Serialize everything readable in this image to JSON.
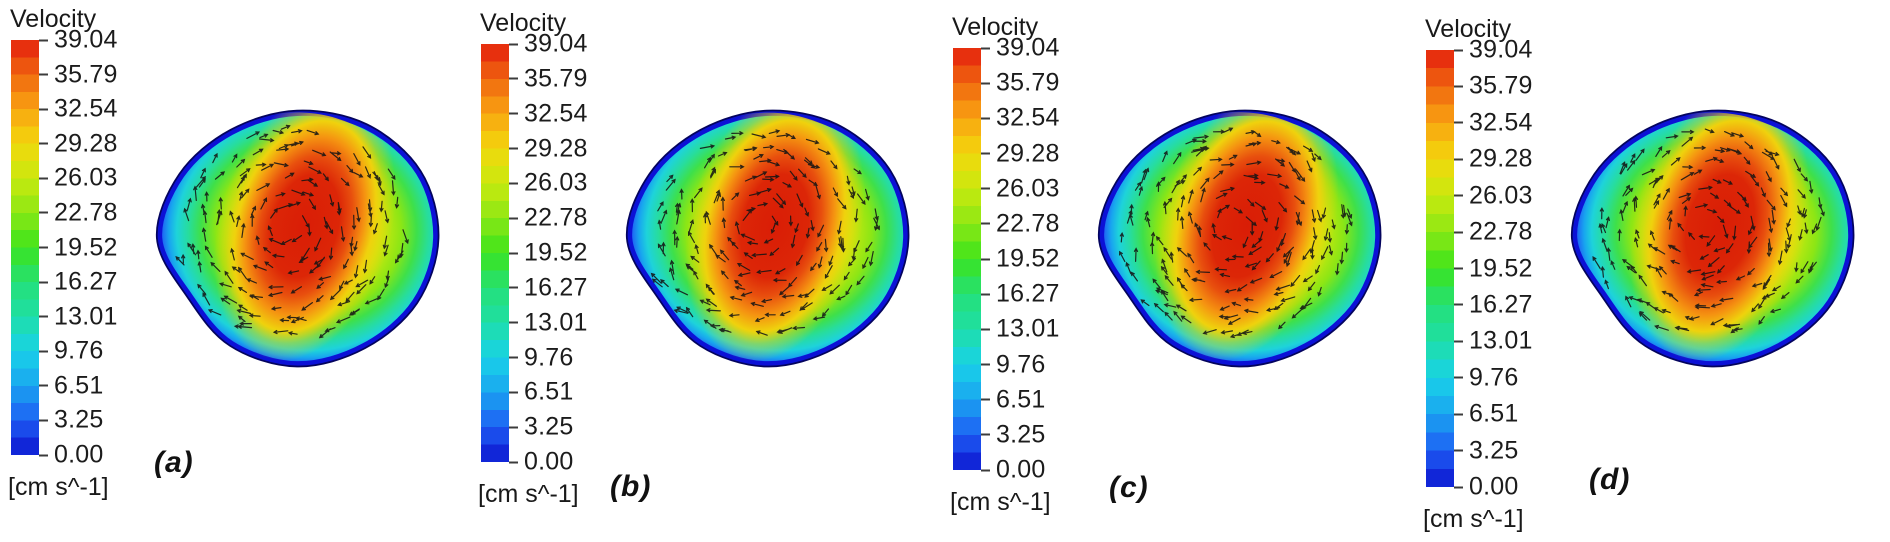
{
  "figure": {
    "background": "#ffffff",
    "legend": {
      "title": "Velocity",
      "unit": "[cm s^-1]",
      "ticks": [
        "39.04",
        "35.79",
        "32.54",
        "29.28",
        "26.03",
        "22.78",
        "19.52",
        "16.27",
        "13.01",
        "9.76",
        "6.51",
        "3.25",
        "0.00"
      ],
      "colors": [
        "#e41e0e",
        "#f0670f",
        "#f9a411",
        "#f2d80c",
        "#c9e90f",
        "#8ce814",
        "#3ce41c",
        "#24e077",
        "#1fdfa6",
        "#18d2e8",
        "#1aa4f0",
        "#1e5ef4",
        "#0d13cf"
      ]
    },
    "panels": [
      {
        "label": "(a)"
      },
      {
        "label": "(b)"
      },
      {
        "label": "(c)"
      },
      {
        "label": "(d)"
      }
    ],
    "contour": {
      "rim_outer_color": "#04045e",
      "rim_inner_color": "#0c11d6",
      "vector_color": "#141414",
      "base_stops": [
        [
          0,
          "#f0d90c"
        ],
        [
          0.3,
          "#eadf0c"
        ],
        [
          0.46,
          "#cfe80f"
        ],
        [
          0.6,
          "#8ce615"
        ],
        [
          0.7,
          "#3ee04a"
        ],
        [
          0.78,
          "#27dd9d"
        ],
        [
          0.855,
          "#1ed3da"
        ],
        [
          0.905,
          "#18a6ef"
        ],
        [
          0.95,
          "#1e66f4"
        ],
        [
          0.985,
          "#1229dd"
        ],
        [
          1,
          "#0c12c4"
        ]
      ],
      "core_stops": [
        [
          0,
          "#d91d06"
        ],
        [
          0.38,
          "#dc2607"
        ],
        [
          0.52,
          "#e84f0e"
        ],
        [
          0.66,
          "#f59311"
        ],
        [
          0.78,
          "#efd20d"
        ],
        [
          0.87,
          "rgba(239,210,13,0.45)"
        ],
        [
          1,
          "rgba(239,210,13,0)"
        ]
      ]
    }
  },
  "chart_data": {
    "type": "heatmap",
    "subtype": "cfd-velocity-contour-with-vector-field",
    "title": "Velocity",
    "unit_label": "[cm s^-1]",
    "colorbar_ticks": [
      39.04,
      35.79,
      32.54,
      29.28,
      26.03,
      22.78,
      19.52,
      16.27,
      13.01,
      9.76,
      6.51,
      3.25,
      0.0
    ],
    "value_range": [
      0.0,
      39.04
    ],
    "colormap": "rainbow: red = 39.04 (high) through orange, yellow, green, cyan to dark blue = 0.00 (low)",
    "legend_position": "left of each panel",
    "grid": false,
    "panels": [
      {
        "label": "(a)",
        "peak_velocity_cm_s": 39.04,
        "boundary_velocity_cm_s": 0.0,
        "features": "near-circular cross-section; diagonal red high-velocity core slightly right of centre; velocity falls to zero at the dark-blue wall; swirling in-plane velocity vectors"
      },
      {
        "label": "(b)",
        "peak_velocity_cm_s": 39.04,
        "boundary_velocity_cm_s": 0.0,
        "features": "near-circular cross-section; diagonal red high-velocity core slightly right of centre; velocity falls to zero at the dark-blue wall; swirling in-plane velocity vectors"
      },
      {
        "label": "(c)",
        "peak_velocity_cm_s": 39.04,
        "boundary_velocity_cm_s": 0.0,
        "features": "near-circular cross-section; diagonal red high-velocity core slightly right of centre; velocity falls to zero at the dark-blue wall; swirling in-plane velocity vectors"
      },
      {
        "label": "(d)",
        "peak_velocity_cm_s": 39.04,
        "boundary_velocity_cm_s": 0.0,
        "features": "near-circular cross-section; diagonal red high-velocity core slightly right of centre; velocity falls to zero at the dark-blue wall; swirling in-plane velocity vectors"
      }
    ]
  }
}
